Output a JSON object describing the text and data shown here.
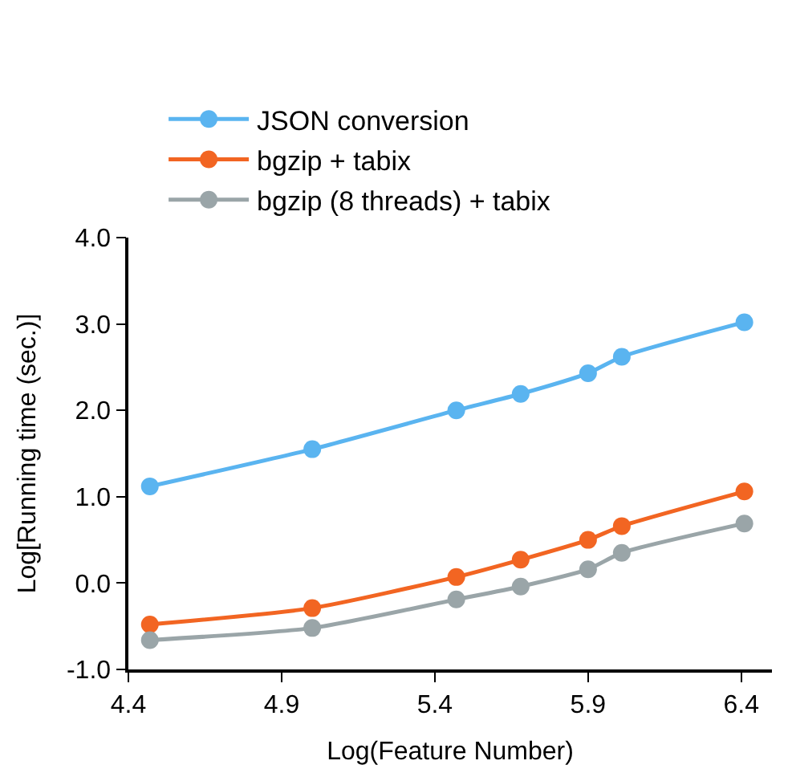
{
  "chart_data": {
    "type": "line",
    "xlabel": "Log(Feature Number)",
    "ylabel": "Log[Running time (sec.)]",
    "x": [
      4.47,
      5.0,
      5.47,
      5.68,
      5.9,
      6.01,
      6.41
    ],
    "series": [
      {
        "name": "JSON conversion",
        "color": "#5ab4f0",
        "values": [
          1.12,
          1.55,
          2.0,
          2.19,
          2.43,
          2.62,
          3.02
        ]
      },
      {
        "name": "bgzip + tabix",
        "color": "#f26522",
        "values": [
          -0.48,
          -0.29,
          0.07,
          0.27,
          0.5,
          0.66,
          1.06
        ]
      },
      {
        "name": "bgzip (8 threads) + tabix",
        "color": "#9aa5a8",
        "values": [
          -0.66,
          -0.52,
          -0.19,
          -0.04,
          0.16,
          0.35,
          0.69
        ]
      }
    ],
    "xlim": [
      4.4,
      6.5
    ],
    "xticks": [
      4.4,
      4.9,
      5.4,
      5.9,
      6.4
    ],
    "ylim": [
      -1.0,
      4.0
    ],
    "yticks": [
      {
        "value": -1,
        "label": "-1.0"
      },
      {
        "value": 0,
        "label": "0.0"
      },
      {
        "value": 1,
        "label": "1.0"
      },
      {
        "value": 2,
        "label": "2.0"
      },
      {
        "value": 3,
        "label": "3.0"
      },
      {
        "value": 4,
        "label": "4.0"
      }
    ],
    "legend": "top left",
    "marker": "circle",
    "line_style": "solid"
  }
}
